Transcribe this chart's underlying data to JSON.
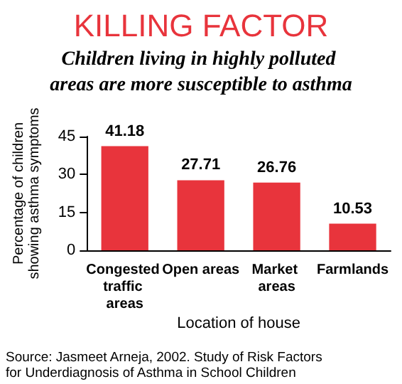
{
  "chart_data": {
    "type": "bar",
    "title": "KILLING FACTOR",
    "subtitle": "Children living in highly polluted areas are more susceptible to asthma",
    "ylabel": "Percentage of children showing asthma symptoms",
    "xlabel": "Location of house",
    "categories": [
      "Congested traffic areas",
      "Open areas",
      "Market areas",
      "Farmlands"
    ],
    "values": [
      41.18,
      27.71,
      26.76,
      10.53
    ],
    "color": "#e8343c",
    "ylim": [
      0,
      45
    ],
    "yticks": [
      0,
      15,
      30,
      45
    ],
    "grid": false,
    "data_labels": true,
    "annotations": [
      "Source: Jasmeet Arneja, 2002. Study of Risk Factors for Underdiagnosis of Asthma in School Children"
    ]
  }
}
